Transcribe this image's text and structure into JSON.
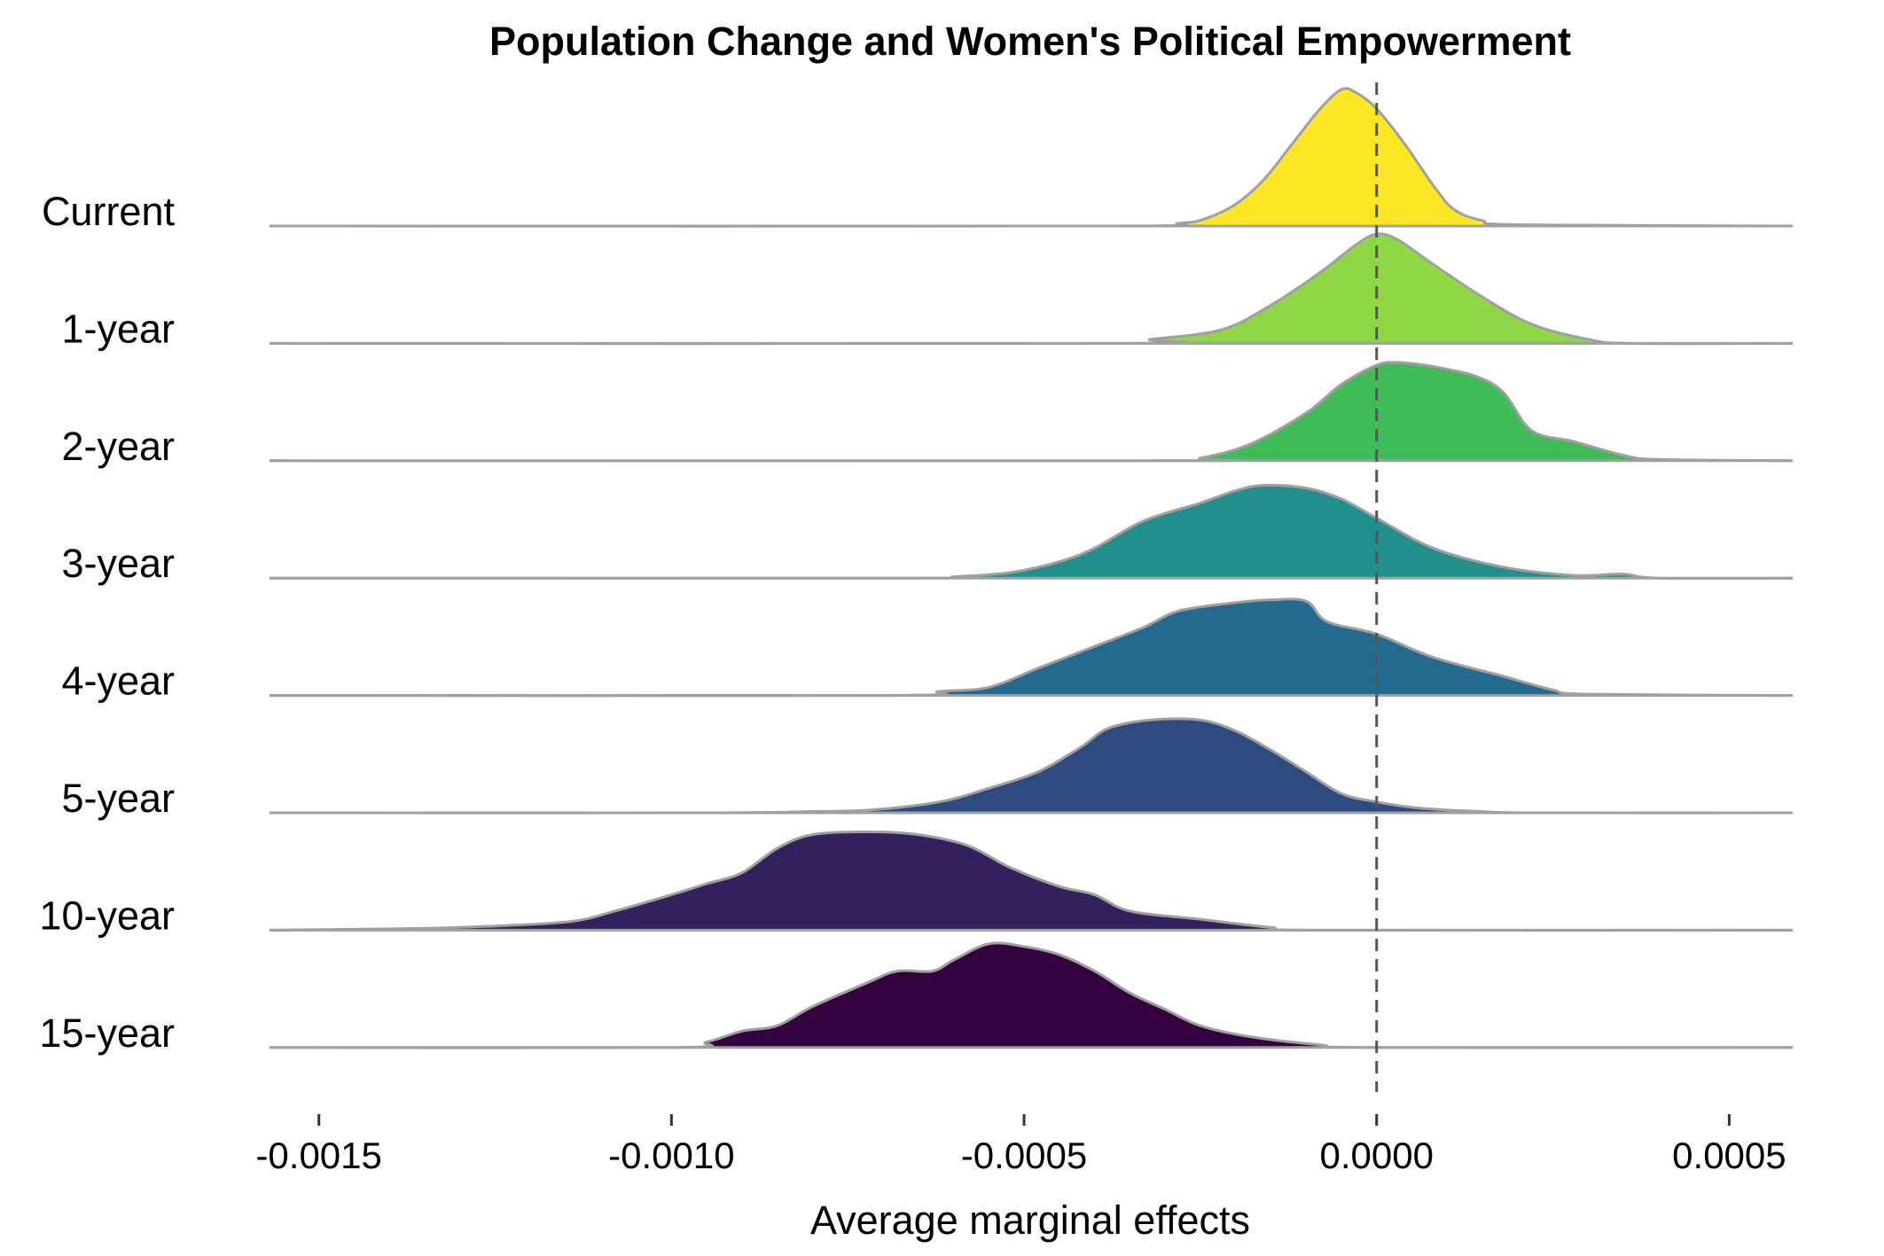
{
  "chart_data": {
    "type": "ridgeline",
    "title": "Population Change and Women's Political Empowerment",
    "xlabel": "Average marginal effects",
    "ylabel": "",
    "xlim": [
      -0.00157,
      0.00059
    ],
    "x_ticks": [
      -0.0015,
      -0.001,
      -0.0005,
      0.0,
      0.0005
    ],
    "x_tick_labels": [
      "-0.0015",
      "-0.0010",
      "-0.0005",
      "0.0000",
      "0.0005"
    ],
    "reference_line": {
      "x": 0.0,
      "style": "dashed"
    },
    "grid": false,
    "legend": "none",
    "outline_color": "#a0a0a0",
    "series": [
      {
        "name": "Current",
        "color": "#fde725",
        "points": [
          [
            -0.00157,
            0
          ],
          [
            -0.0004,
            0
          ],
          [
            -0.00028,
            0.02
          ],
          [
            -0.00024,
            0.06
          ],
          [
            -0.0002,
            0.16
          ],
          [
            -0.00016,
            0.34
          ],
          [
            -0.00012,
            0.6
          ],
          [
            -8e-05,
            0.86
          ],
          [
            -5e-05,
            1.0
          ],
          [
            -3e-05,
            0.98
          ],
          [
            0.0,
            0.86
          ],
          [
            4e-05,
            0.6
          ],
          [
            8e-05,
            0.3
          ],
          [
            0.00011,
            0.12
          ],
          [
            0.00015,
            0.04
          ],
          [
            0.0002,
            0.01
          ],
          [
            0.00059,
            0
          ]
        ]
      },
      {
        "name": "1-year",
        "color": "#8fd744",
        "points": [
          [
            -0.00157,
            0
          ],
          [
            -0.00037,
            0
          ],
          [
            -0.00032,
            0.03
          ],
          [
            -0.00022,
            0.1
          ],
          [
            -0.00015,
            0.28
          ],
          [
            -8e-05,
            0.52
          ],
          [
            -3e-05,
            0.72
          ],
          [
            0.0,
            0.8
          ],
          [
            3e-05,
            0.76
          ],
          [
            8e-05,
            0.58
          ],
          [
            0.00015,
            0.34
          ],
          [
            0.00022,
            0.14
          ],
          [
            0.0003,
            0.03
          ],
          [
            0.00036,
            0
          ],
          [
            0.00059,
            0
          ]
        ]
      },
      {
        "name": "2-year",
        "color": "#3fbc57",
        "points": [
          [
            -0.00157,
            0
          ],
          [
            -0.0003,
            0
          ],
          [
            -0.00025,
            0.02
          ],
          [
            -0.00018,
            0.12
          ],
          [
            -0.0001,
            0.35
          ],
          [
            -5e-05,
            0.56
          ],
          [
            0.0,
            0.7
          ],
          [
            3e-05,
            0.72
          ],
          [
            8e-05,
            0.69
          ],
          [
            0.00014,
            0.62
          ],
          [
            0.00018,
            0.5
          ],
          [
            0.00022,
            0.22
          ],
          [
            0.00028,
            0.14
          ],
          [
            0.00035,
            0.04
          ],
          [
            0.0004,
            0.01
          ],
          [
            0.00059,
            0
          ]
        ]
      },
      {
        "name": "3-year",
        "color": "#21908c",
        "points": [
          [
            -0.00157,
            0
          ],
          [
            -0.00065,
            0
          ],
          [
            -0.0006,
            0.01
          ],
          [
            -0.00052,
            0.04
          ],
          [
            -0.00045,
            0.12
          ],
          [
            -0.0004,
            0.22
          ],
          [
            -0.00033,
            0.42
          ],
          [
            -0.00025,
            0.55
          ],
          [
            -0.0002,
            0.64
          ],
          [
            -0.00016,
            0.68
          ],
          [
            -0.0001,
            0.66
          ],
          [
            -5e-05,
            0.58
          ],
          [
            0.0,
            0.44
          ],
          [
            8e-05,
            0.22
          ],
          [
            0.00018,
            0.08
          ],
          [
            0.00028,
            0.02
          ],
          [
            0.00035,
            0.03
          ],
          [
            0.0004,
            0
          ],
          [
            0.00059,
            0
          ]
        ]
      },
      {
        "name": "4-year",
        "color": "#24698e",
        "points": [
          [
            -0.00157,
            0
          ],
          [
            -0.0007,
            0
          ],
          [
            -0.00062,
            0.03
          ],
          [
            -0.00055,
            0.06
          ],
          [
            -0.00048,
            0.2
          ],
          [
            -0.0004,
            0.36
          ],
          [
            -0.00033,
            0.5
          ],
          [
            -0.00028,
            0.62
          ],
          [
            -0.0002,
            0.68
          ],
          [
            -0.00015,
            0.7
          ],
          [
            -0.0001,
            0.69
          ],
          [
            -7e-05,
            0.54
          ],
          [
            0.0,
            0.45
          ],
          [
            8e-05,
            0.28
          ],
          [
            0.00018,
            0.14
          ],
          [
            0.00025,
            0.04
          ],
          [
            0.0003,
            0.01
          ],
          [
            0.00059,
            0
          ]
        ]
      },
      {
        "name": "5-year",
        "color": "#2d4b7e",
        "points": [
          [
            -0.00157,
            0
          ],
          [
            -0.00095,
            0
          ],
          [
            -0.0008,
            0.01
          ],
          [
            -0.00072,
            0.02
          ],
          [
            -0.00062,
            0.08
          ],
          [
            -0.00055,
            0.18
          ],
          [
            -0.00048,
            0.3
          ],
          [
            -0.00042,
            0.48
          ],
          [
            -0.00038,
            0.62
          ],
          [
            -0.00032,
            0.68
          ],
          [
            -0.00025,
            0.68
          ],
          [
            -0.0002,
            0.6
          ],
          [
            -0.00015,
            0.46
          ],
          [
            -0.0001,
            0.3
          ],
          [
            -5e-05,
            0.14
          ],
          [
            0.0,
            0.08
          ],
          [
            5e-05,
            0.04
          ],
          [
            0.0001,
            0.02
          ],
          [
            0.00015,
            0.01
          ],
          [
            0.00022,
            0
          ],
          [
            0.00059,
            0
          ]
        ]
      },
      {
        "name": "10-year",
        "color": "#35205f",
        "points": [
          [
            -0.00157,
            0
          ],
          [
            -0.0014,
            0.01
          ],
          [
            -0.0013,
            0.02
          ],
          [
            -0.00115,
            0.06
          ],
          [
            -0.00108,
            0.14
          ],
          [
            -0.001,
            0.26
          ],
          [
            -0.00095,
            0.34
          ],
          [
            -0.0009,
            0.42
          ],
          [
            -0.00085,
            0.6
          ],
          [
            -0.0008,
            0.7
          ],
          [
            -0.00072,
            0.72
          ],
          [
            -0.00065,
            0.7
          ],
          [
            -0.00058,
            0.62
          ],
          [
            -0.00052,
            0.46
          ],
          [
            -0.00045,
            0.32
          ],
          [
            -0.0004,
            0.26
          ],
          [
            -0.00035,
            0.14
          ],
          [
            -0.00025,
            0.08
          ],
          [
            -0.00015,
            0.02
          ],
          [
            -8e-05,
            0
          ],
          [
            0.00059,
            0
          ]
        ]
      },
      {
        "name": "15-year",
        "color": "#36013f",
        "points": [
          [
            -0.00157,
            0
          ],
          [
            -0.001,
            0
          ],
          [
            -0.00095,
            0.04
          ],
          [
            -0.0009,
            0.12
          ],
          [
            -0.00085,
            0.16
          ],
          [
            -0.0008,
            0.3
          ],
          [
            -0.00072,
            0.48
          ],
          [
            -0.00068,
            0.56
          ],
          [
            -0.00063,
            0.56
          ],
          [
            -0.0006,
            0.64
          ],
          [
            -0.00055,
            0.76
          ],
          [
            -0.0005,
            0.74
          ],
          [
            -0.00045,
            0.68
          ],
          [
            -0.0004,
            0.56
          ],
          [
            -0.00035,
            0.4
          ],
          [
            -0.0003,
            0.28
          ],
          [
            -0.00025,
            0.16
          ],
          [
            -0.00018,
            0.08
          ],
          [
            -8e-05,
            0.02
          ],
          [
            0.0,
            0
          ],
          [
            0.00059,
            0
          ]
        ]
      }
    ]
  }
}
